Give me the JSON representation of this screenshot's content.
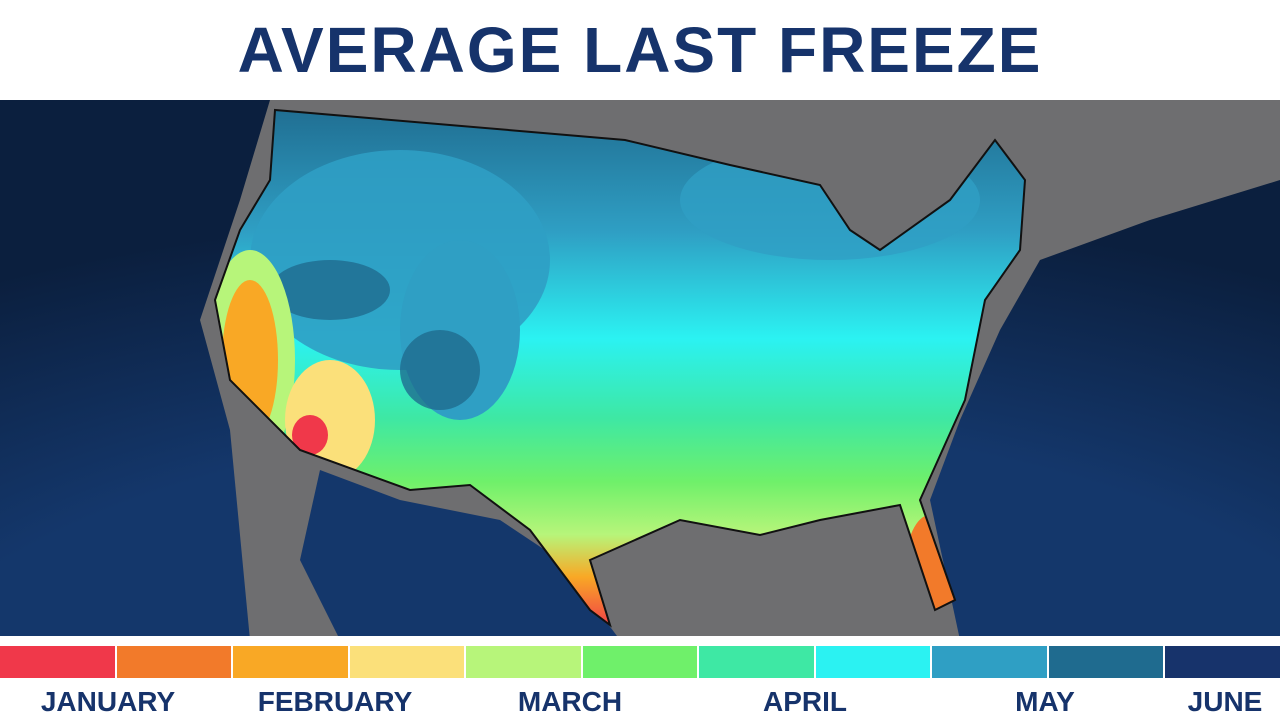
{
  "title": "AVERAGE LAST FREEZE",
  "legend": {
    "colors": [
      "#f0384a",
      "#f27a2a",
      "#f9a825",
      "#fbe07a",
      "#b7f57a",
      "#6ff06a",
      "#3ee8a4",
      "#2bf2f2",
      "#2f9fc4",
      "#1f6b8f",
      "#17336b"
    ],
    "labels": [
      "JANUARY",
      "FEBRUARY",
      "MARCH",
      "APRIL",
      "MAY",
      "JUNE"
    ]
  }
}
